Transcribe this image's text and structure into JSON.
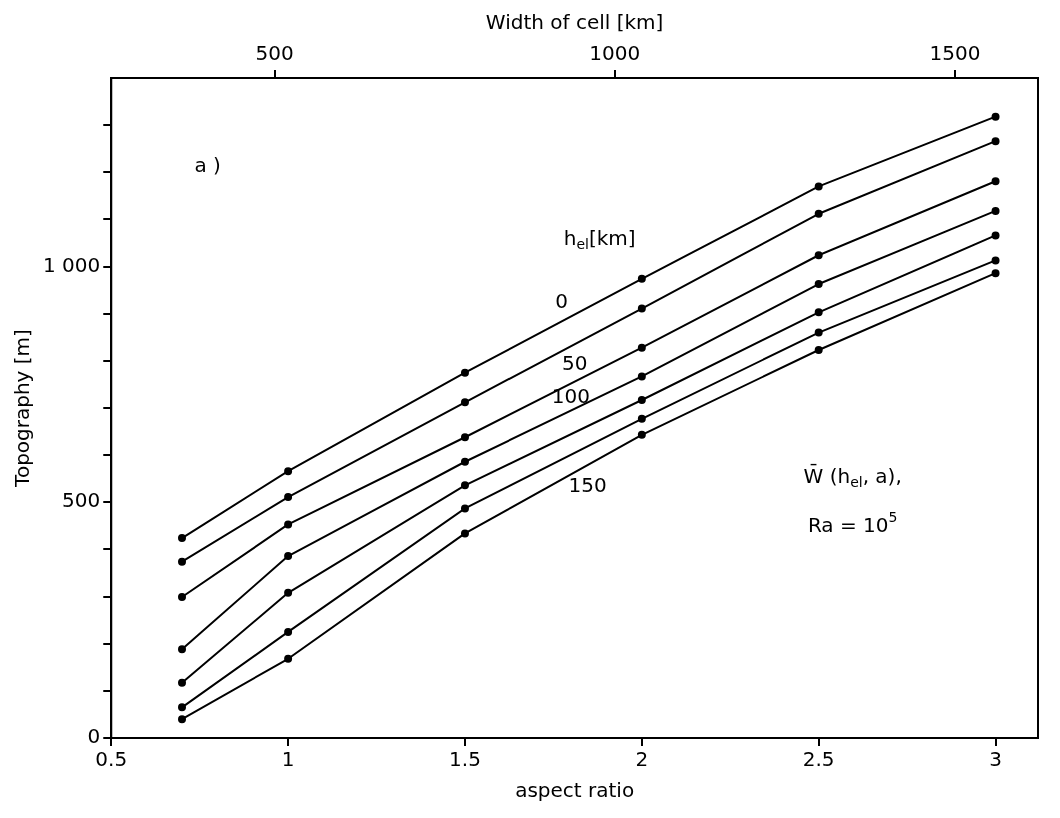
{
  "chart_data": {
    "type": "line",
    "xlabel": "aspect ratio",
    "ylabel": "Topography [m]",
    "x2label": "Width of cell [km]",
    "x": [
      0.7,
      1,
      1.5,
      2,
      2.5,
      3
    ],
    "xlim": [
      0.5,
      3.12
    ],
    "xticks": [
      0.5,
      1,
      1.5,
      2,
      2.5,
      3
    ],
    "x2lim": [
      260,
      1622
    ],
    "x2ticks": [
      500,
      1000,
      1500
    ],
    "ylim": [
      0,
      1400
    ],
    "yticks": [
      0,
      {
        "value": 100,
        "label": null
      },
      {
        "value": 200,
        "label": null
      },
      {
        "value": 300,
        "label": null
      },
      {
        "value": 400,
        "label": null
      },
      500,
      {
        "value": 600,
        "label": null
      },
      {
        "value": 700,
        "label": null
      },
      {
        "value": 800,
        "label": null
      },
      {
        "value": 900,
        "label": null
      },
      {
        "value": 1000,
        "label": "1 000"
      },
      {
        "value": 1100,
        "label": null
      },
      {
        "value": 1200,
        "label": null
      },
      {
        "value": 1300,
        "label": null
      }
    ],
    "series": [
      {
        "color": "#000000",
        "values": [
          424,
          566,
          775,
          974,
          1170,
          1318
        ]
      },
      {
        "color": "#000000",
        "values": [
          374,
          511,
          712,
          911,
          1112,
          1266
        ]
      },
      {
        "color": "#000000",
        "values": [
          299,
          453,
          638,
          828,
          1024,
          1181
        ]
      },
      {
        "color": "#000000",
        "values": [
          188,
          386,
          586,
          767,
          963,
          1118
        ]
      },
      {
        "color": "#000000",
        "values": [
          117,
          308,
          536,
          717,
          903,
          1066
        ]
      },
      {
        "color": "#000000",
        "values": [
          65,
          225,
          487,
          677,
          860,
          1013
        ]
      },
      {
        "color": "#000000",
        "values": [
          40,
          168,
          434,
          643,
          823,
          986
        ]
      }
    ],
    "annotations": [
      "a )",
      "h$_{el}$[km]",
      "0",
      "50",
      "100",
      "150",
      "W̄ (h$_{el}$, a),",
      "Ra = 10$^{5}$"
    ],
    "grid": false,
    "legend": false,
    "marker": "circle",
    "line_style": "solid"
  }
}
